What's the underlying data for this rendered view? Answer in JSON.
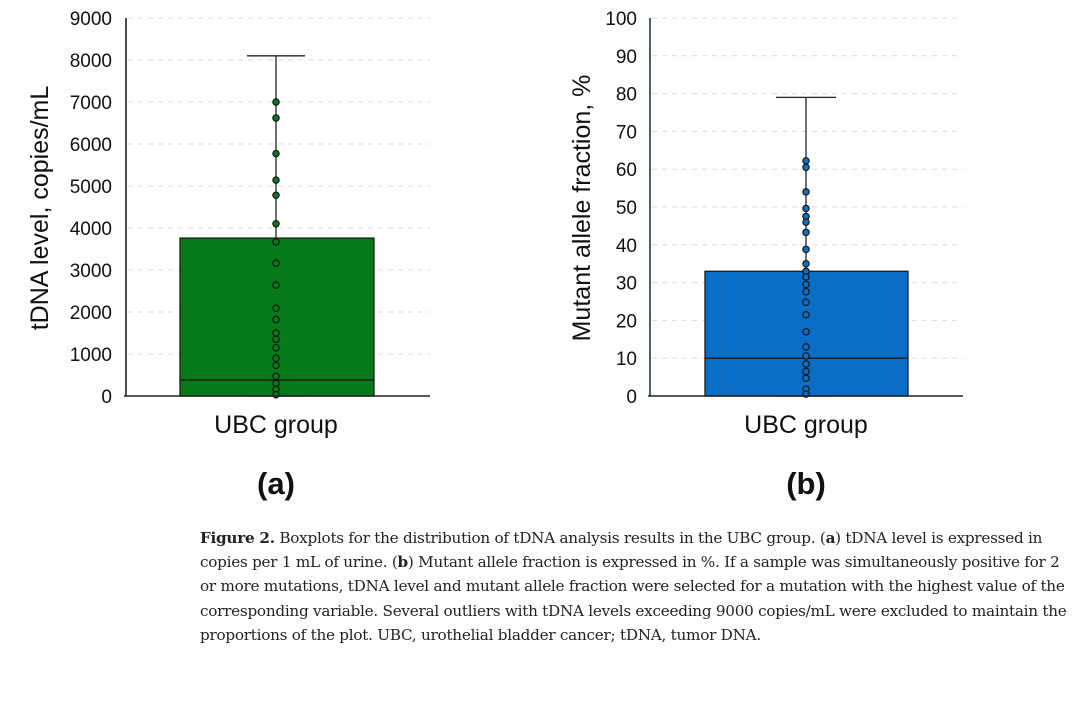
{
  "chart_data": [
    {
      "type": "boxplot",
      "panel_label": "(a)",
      "category": "UBC group",
      "ylabel": "tDNA level, copies/mL",
      "ylim": [
        0,
        9000
      ],
      "yticks": [
        "0",
        "1000",
        "2000",
        "3000",
        "4000",
        "5000",
        "6000",
        "7000",
        "8000",
        "9000"
      ],
      "ytick_values": [
        0,
        1000,
        2000,
        3000,
        4000,
        5000,
        6000,
        7000,
        8000,
        9000
      ],
      "grid": "horizontal dashed",
      "box": {
        "q1": 0,
        "median": 380,
        "q3": 3760,
        "whisker_low": 0,
        "whisker_high": 8100
      },
      "points": [
        7000,
        6620,
        5770,
        5140,
        4780,
        4100,
        3670,
        3160,
        2640,
        2090,
        1820,
        1500,
        1350,
        1150,
        900,
        730,
        470,
        300,
        160,
        30
      ],
      "color": "#067a1a"
    },
    {
      "type": "boxplot",
      "panel_label": "(b)",
      "category": "UBC group",
      "ylabel": "Mutant allele fraction, %",
      "ylim": [
        0,
        100
      ],
      "yticks": [
        "0",
        "10",
        "20",
        "30",
        "40",
        "50",
        "60",
        "70",
        "80",
        "90",
        "100"
      ],
      "ytick_values": [
        0,
        10,
        20,
        30,
        40,
        50,
        60,
        70,
        80,
        90,
        100
      ],
      "grid": "horizontal dashed",
      "box": {
        "q1": 0,
        "median": 10,
        "q3": 33,
        "whisker_low": 0,
        "whisker_high": 79
      },
      "points": [
        62.2,
        60.5,
        54,
        49.6,
        47.5,
        46,
        43.3,
        38.8,
        35,
        33,
        31.5,
        29.5,
        27.6,
        24.8,
        21.5,
        17,
        13,
        10.6,
        8.5,
        6.5,
        4.7,
        1.8,
        0.5
      ],
      "color": "#0a6ec6"
    }
  ],
  "caption": {
    "figure_label": "Figure 2.",
    "part1": " Boxplots for the distribution of tDNA analysis results in the UBC group. (",
    "a_label": "a",
    "part2": ") tDNA level is expressed in copies per 1 mL of urine. (",
    "b_label": "b",
    "part3": ") Mutant allele fraction is expressed in %. If a sample was simultaneously positive for 2 or more mutations, tDNA level and mutant allele fraction were selected for a mutation with the highest value of the corresponding variable. Several outliers with tDNA levels exceeding 9000 copies/mL were excluded to maintain the proportions of the plot. UBC, urothelial bladder cancer; tDNA, tumor DNA."
  }
}
